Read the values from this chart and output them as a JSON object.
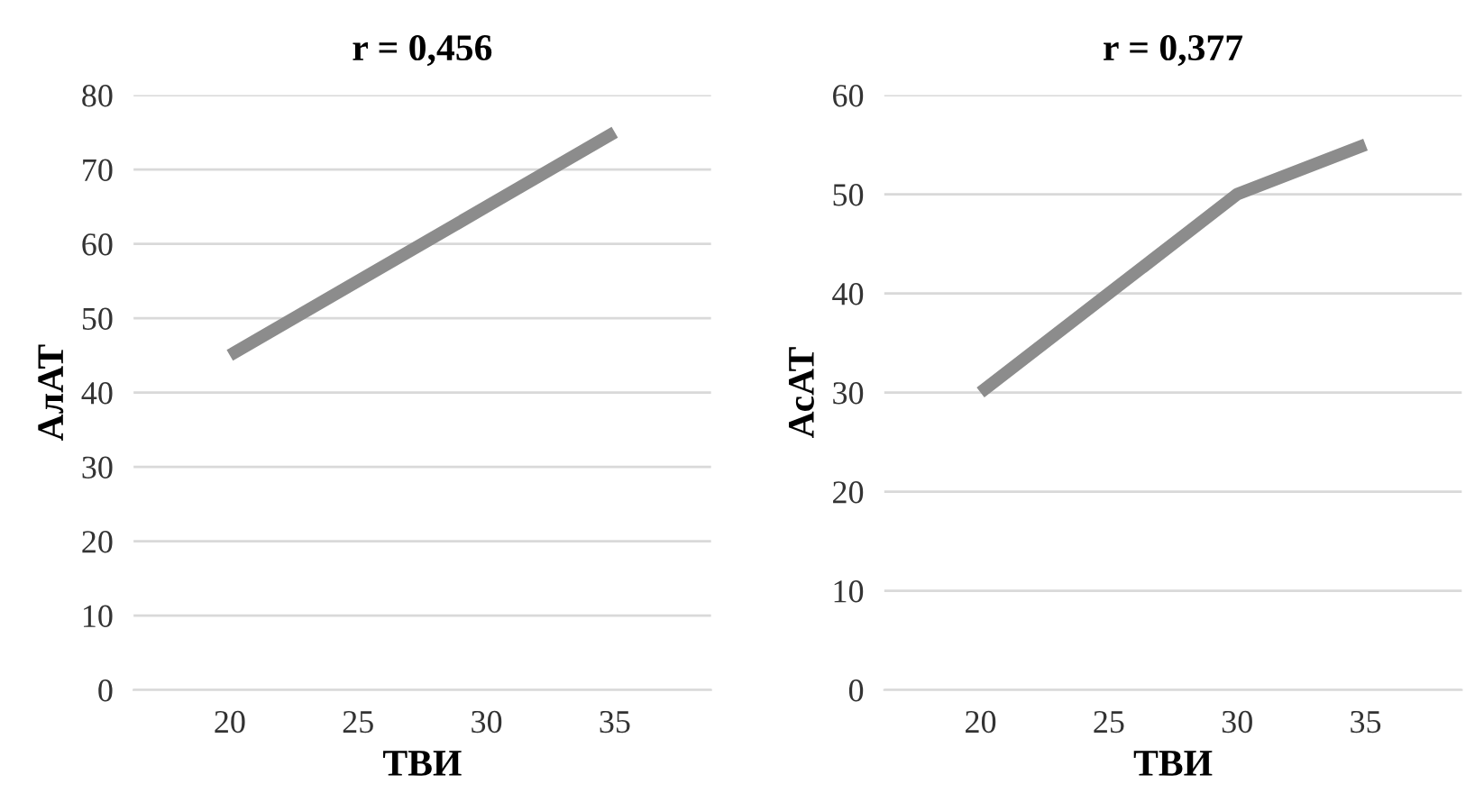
{
  "chart_data": [
    {
      "type": "line",
      "title": "r = 0,456",
      "xlabel": "ТВИ",
      "ylabel": "АлАТ",
      "categories": [
        "20",
        "25",
        "30",
        "35"
      ],
      "series": [
        {
          "color": "#8c8c8c",
          "values": [
            45,
            55,
            65,
            75
          ]
        }
      ],
      "ylim": [
        0,
        80
      ],
      "yticks": [
        0,
        10,
        20,
        30,
        40,
        50,
        60,
        70,
        80
      ],
      "grid": "y",
      "legend": false
    },
    {
      "type": "line",
      "title": "r = 0,377",
      "xlabel": "ТВИ",
      "ylabel": "АсАТ",
      "categories": [
        "20",
        "25",
        "30",
        "35"
      ],
      "series": [
        {
          "color": "#8c8c8c",
          "values": [
            30,
            40,
            50,
            55
          ]
        }
      ],
      "ylim": [
        0,
        60
      ],
      "yticks": [
        0,
        10,
        20,
        30,
        40,
        50,
        60
      ],
      "grid": "y",
      "legend": false
    }
  ]
}
